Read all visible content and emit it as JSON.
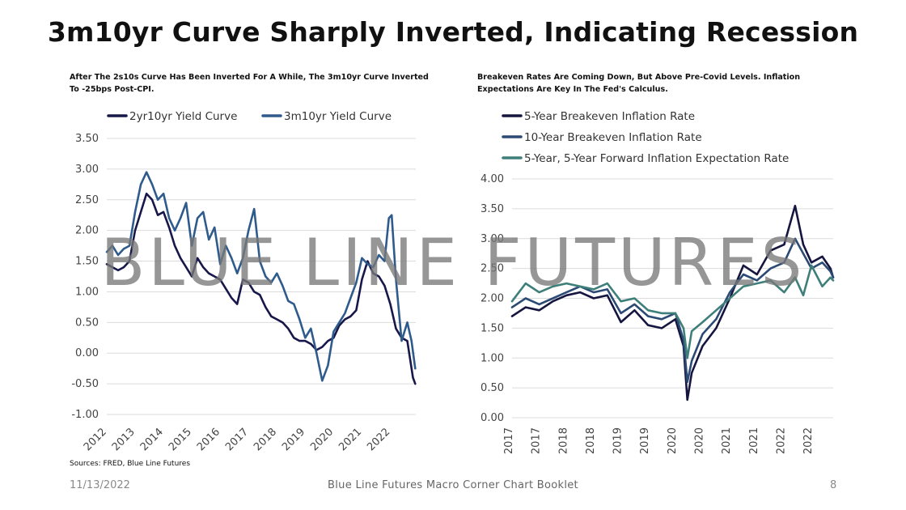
{
  "page": {
    "title": "3m10yr Curve Sharply Inverted, Indicating Recession",
    "sources": "Sources: FRED, Blue Line Futures",
    "footer_date": "11/13/2022",
    "footer_center": "Blue Line Futures Macro Corner Chart Booklet",
    "footer_page": "8",
    "watermark": "BLUE LINE FUTURES"
  },
  "chart_data": [
    {
      "type": "line",
      "title": "After The 2s10s Curve Has Been Inverted For A While, The 3m10yr Curve Inverted To -25bps Post-CPI.",
      "xlabel": "",
      "ylabel": "",
      "xlim": [
        2012.0,
        2022.9
      ],
      "ylim": [
        -1.0,
        3.5
      ],
      "y_ticks": [
        "3.50",
        "3.00",
        "2.50",
        "2.00",
        "1.50",
        "1.00",
        "0.50",
        "0.00",
        "-0.50",
        "-1.00"
      ],
      "x_ticks": [
        "2012",
        "2013",
        "2014",
        "2015",
        "2016",
        "2017",
        "2018",
        "2019",
        "2020",
        "2021",
        "2022"
      ],
      "grid": true,
      "legend": "top",
      "series": [
        {
          "name": "2yr10yr Yield Curve",
          "color": "#17174a",
          "x": [
            2012.0,
            2012.2,
            2012.4,
            2012.6,
            2012.8,
            2013.0,
            2013.2,
            2013.4,
            2013.6,
            2013.8,
            2014.0,
            2014.2,
            2014.4,
            2014.6,
            2014.8,
            2015.0,
            2015.2,
            2015.4,
            2015.6,
            2015.8,
            2016.0,
            2016.2,
            2016.4,
            2016.6,
            2016.8,
            2017.0,
            2017.2,
            2017.4,
            2017.6,
            2017.8,
            2018.0,
            2018.2,
            2018.4,
            2018.6,
            2018.8,
            2019.0,
            2019.2,
            2019.4,
            2019.6,
            2019.8,
            2020.0,
            2020.2,
            2020.4,
            2020.6,
            2020.8,
            2021.0,
            2021.2,
            2021.4,
            2021.6,
            2021.8,
            2022.0,
            2022.2,
            2022.4,
            2022.6,
            2022.8,
            2022.88
          ],
          "values": [
            1.45,
            1.4,
            1.35,
            1.4,
            1.5,
            2.0,
            2.3,
            2.6,
            2.5,
            2.25,
            2.3,
            2.05,
            1.75,
            1.55,
            1.4,
            1.25,
            1.55,
            1.4,
            1.3,
            1.25,
            1.2,
            1.05,
            0.9,
            0.8,
            1.2,
            1.15,
            1.0,
            0.95,
            0.75,
            0.6,
            0.55,
            0.5,
            0.4,
            0.25,
            0.2,
            0.2,
            0.15,
            0.05,
            0.1,
            0.2,
            0.25,
            0.45,
            0.55,
            0.6,
            0.7,
            1.2,
            1.5,
            1.3,
            1.25,
            1.1,
            0.8,
            0.4,
            0.25,
            0.2,
            -0.4,
            -0.5
          ]
        },
        {
          "name": "3m10yr Yield Curve",
          "color": "#2f5b8c",
          "x": [
            2012.0,
            2012.2,
            2012.4,
            2012.6,
            2012.8,
            2013.0,
            2013.2,
            2013.4,
            2013.6,
            2013.8,
            2014.0,
            2014.2,
            2014.4,
            2014.6,
            2014.8,
            2015.0,
            2015.2,
            2015.4,
            2015.6,
            2015.8,
            2016.0,
            2016.2,
            2016.4,
            2016.6,
            2016.8,
            2017.0,
            2017.2,
            2017.4,
            2017.6,
            2017.8,
            2018.0,
            2018.2,
            2018.4,
            2018.6,
            2018.8,
            2019.0,
            2019.2,
            2019.4,
            2019.6,
            2019.8,
            2020.0,
            2020.2,
            2020.4,
            2020.6,
            2020.8,
            2021.0,
            2021.2,
            2021.4,
            2021.6,
            2021.8,
            2021.95,
            2022.05,
            2022.2,
            2022.4,
            2022.6,
            2022.75,
            2022.88
          ],
          "values": [
            1.65,
            1.75,
            1.6,
            1.7,
            1.75,
            2.3,
            2.75,
            2.95,
            2.75,
            2.5,
            2.6,
            2.2,
            2.0,
            2.2,
            2.45,
            1.75,
            2.2,
            2.3,
            1.85,
            2.05,
            1.45,
            1.75,
            1.55,
            1.3,
            1.55,
            2.0,
            2.35,
            1.5,
            1.25,
            1.15,
            1.3,
            1.1,
            0.85,
            0.8,
            0.55,
            0.25,
            0.4,
            0.0,
            -0.45,
            -0.2,
            0.35,
            0.5,
            0.65,
            0.9,
            1.15,
            1.55,
            1.45,
            1.4,
            1.6,
            1.5,
            2.2,
            2.25,
            1.2,
            0.2,
            0.5,
            0.2,
            -0.25
          ]
        }
      ]
    },
    {
      "type": "line",
      "title": "Breakeven Rates Are Coming Down, But Above Pre-Covid Levels. Inflation Expectations Are Key In The Fed's Calculus.",
      "xlabel": "",
      "ylabel": "",
      "xlim": [
        2017.0,
        2022.9
      ],
      "ylim": [
        0.0,
        4.0
      ],
      "y_ticks": [
        "4.00",
        "3.50",
        "3.00",
        "2.50",
        "2.00",
        "1.50",
        "1.00",
        "0.50",
        "0.00"
      ],
      "x_ticks": [
        "2017",
        "2017",
        "2018",
        "2018",
        "2019",
        "2019",
        "2020",
        "2020",
        "2021",
        "2021",
        "2022",
        "2022"
      ],
      "grid": true,
      "legend": "top",
      "series": [
        {
          "name": "5-Year Breakeven Inflation Rate",
          "color": "#15153f",
          "x": [
            2017.0,
            2017.25,
            2017.5,
            2017.75,
            2018.0,
            2018.25,
            2018.5,
            2018.75,
            2019.0,
            2019.25,
            2019.5,
            2019.75,
            2020.0,
            2020.15,
            2020.22,
            2020.3,
            2020.5,
            2020.75,
            2021.0,
            2021.25,
            2021.5,
            2021.75,
            2022.0,
            2022.2,
            2022.35,
            2022.5,
            2022.7,
            2022.85,
            2022.9
          ],
          "values": [
            1.7,
            1.85,
            1.8,
            1.95,
            2.05,
            2.1,
            2.0,
            2.05,
            1.6,
            1.8,
            1.55,
            1.5,
            1.65,
            1.2,
            0.3,
            0.75,
            1.2,
            1.5,
            2.0,
            2.55,
            2.4,
            2.8,
            2.9,
            3.55,
            2.9,
            2.6,
            2.7,
            2.5,
            2.35
          ]
        },
        {
          "name": "10-Year Breakeven Inflation Rate",
          "color": "#2b4a74",
          "x": [
            2017.0,
            2017.25,
            2017.5,
            2017.75,
            2018.0,
            2018.25,
            2018.5,
            2018.75,
            2019.0,
            2019.25,
            2019.5,
            2019.75,
            2020.0,
            2020.15,
            2020.22,
            2020.3,
            2020.5,
            2020.75,
            2021.0,
            2021.25,
            2021.5,
            2021.75,
            2022.0,
            2022.2,
            2022.35,
            2022.5,
            2022.7,
            2022.85,
            2022.9
          ],
          "values": [
            1.85,
            2.0,
            1.9,
            2.0,
            2.1,
            2.2,
            2.1,
            2.15,
            1.75,
            1.9,
            1.7,
            1.65,
            1.75,
            1.3,
            0.6,
            0.95,
            1.4,
            1.65,
            2.1,
            2.4,
            2.3,
            2.5,
            2.6,
            3.0,
            2.75,
            2.5,
            2.6,
            2.45,
            2.35
          ]
        },
        {
          "name": "5-Year, 5-Year Forward Inflation Expectation Rate",
          "color": "#3f7f7a",
          "x": [
            2017.0,
            2017.25,
            2017.5,
            2017.75,
            2018.0,
            2018.25,
            2018.5,
            2018.75,
            2019.0,
            2019.25,
            2019.5,
            2019.75,
            2020.0,
            2020.15,
            2020.22,
            2020.3,
            2020.5,
            2020.75,
            2021.0,
            2021.25,
            2021.5,
            2021.75,
            2022.0,
            2022.2,
            2022.35,
            2022.5,
            2022.7,
            2022.85,
            2022.9
          ],
          "values": [
            1.95,
            2.25,
            2.1,
            2.2,
            2.25,
            2.2,
            2.15,
            2.25,
            1.95,
            2.0,
            1.8,
            1.75,
            1.75,
            1.5,
            1.0,
            1.45,
            1.6,
            1.8,
            2.0,
            2.2,
            2.25,
            2.3,
            2.1,
            2.35,
            2.05,
            2.55,
            2.2,
            2.35,
            2.3
          ]
        }
      ]
    }
  ]
}
